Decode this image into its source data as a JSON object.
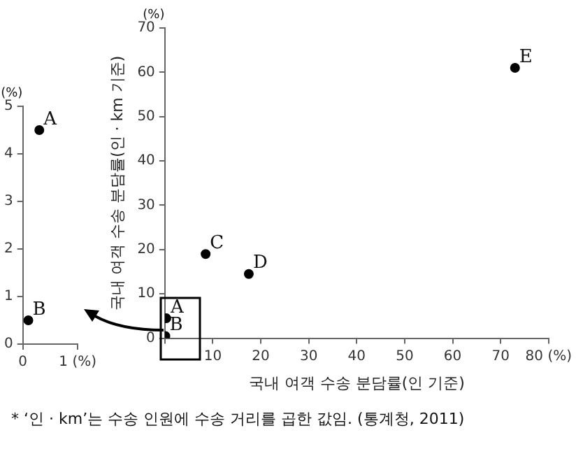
{
  "chart_data": [
    {
      "type": "scatter",
      "xlabel": "국내 여객 수송 분담률(인 기준)",
      "ylabel": "국내 여객 수송 분담률(인 · km 기준)",
      "series": [
        {
          "color": "#000000",
          "x": [
            0.3,
            0.1,
            8.5,
            17.5,
            73
          ],
          "values": [
            4.5,
            0.5,
            19,
            14.5,
            61
          ]
        }
      ],
      "xlim": [
        0,
        80
      ],
      "xticks": [
        {
          "value": 0,
          "label": null
        },
        10,
        20,
        30,
        40,
        50,
        60,
        70,
        {
          "value": 80,
          "label": "80 (%)"
        }
      ],
      "ylim": [
        0,
        70
      ],
      "yticks": [
        0,
        10,
        20,
        30,
        40,
        50,
        60,
        70
      ],
      "grid": false,
      "marker": "circle",
      "annotations": [
        "(%)",
        "* ‘인 · km’는 수송 인원에 수송 거리를 곱한 값임.  (통계청, 2011)",
        {
          "text": "A",
          "x": 0.3,
          "y": 4.5
        },
        {
          "text": "B",
          "x": 0.1,
          "y": 0.5
        },
        {
          "text": "C",
          "x": 8.5,
          "y": 19
        },
        {
          "text": "D",
          "x": 17.5,
          "y": 14.5
        },
        {
          "text": "E",
          "x": 73,
          "y": 61
        }
      ]
    },
    {
      "type": "scatter",
      "series": [
        {
          "color": "#000000",
          "x": [
            0.3,
            0.1
          ],
          "values": [
            4.5,
            0.5
          ]
        }
      ],
      "xlim": [
        0,
        1
      ],
      "xticks": [
        0,
        {
          "value": 1,
          "label": "1 (%)"
        }
      ],
      "ylim": [
        0,
        5
      ],
      "yticks": [
        0,
        1,
        2,
        3,
        4,
        5
      ],
      "grid": false,
      "marker": "circle",
      "annotations": [
        "(%)",
        {
          "text": "A",
          "x": 0.3,
          "y": 4.5
        },
        {
          "text": "B",
          "x": 0.1,
          "y": 0.5
        }
      ]
    }
  ]
}
